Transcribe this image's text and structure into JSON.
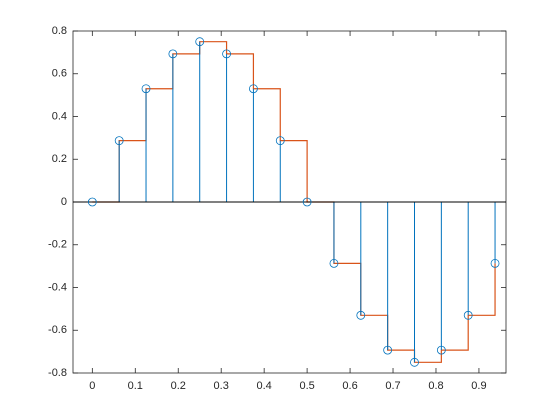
{
  "chart_data": {
    "type": "stem",
    "x": [
      0,
      0.0625,
      0.125,
      0.1875,
      0.25,
      0.3125,
      0.375,
      0.4375,
      0.5,
      0.5625,
      0.625,
      0.6875,
      0.75,
      0.8125,
      0.875,
      0.9375
    ],
    "series": [
      {
        "type": "stem",
        "color": "#0072bd",
        "values": [
          0,
          0.287,
          0.53,
          0.693,
          0.75,
          0.693,
          0.53,
          0.287,
          0,
          -0.287,
          -0.53,
          -0.693,
          -0.75,
          -0.693,
          -0.53,
          -0.287
        ]
      },
      {
        "type": "stairs",
        "color": "#d95319",
        "values": [
          0,
          0.287,
          0.53,
          0.693,
          0.75,
          0.693,
          0.53,
          0.287,
          0,
          -0.287,
          -0.53,
          -0.693,
          -0.75,
          -0.693,
          -0.53,
          -0.287
        ]
      }
    ],
    "xlim": [
      -0.045,
      0.963
    ],
    "ylim": [
      -0.8,
      0.8
    ],
    "xticks": [
      0,
      0.1,
      0.2,
      0.3,
      0.4,
      0.5,
      0.6,
      0.7,
      0.8,
      0.9
    ],
    "yticks": [
      -0.8,
      -0.6,
      -0.4,
      -0.2,
      0,
      0.2,
      0.4,
      0.6,
      0.8
    ],
    "baseline_color": "#000000"
  }
}
